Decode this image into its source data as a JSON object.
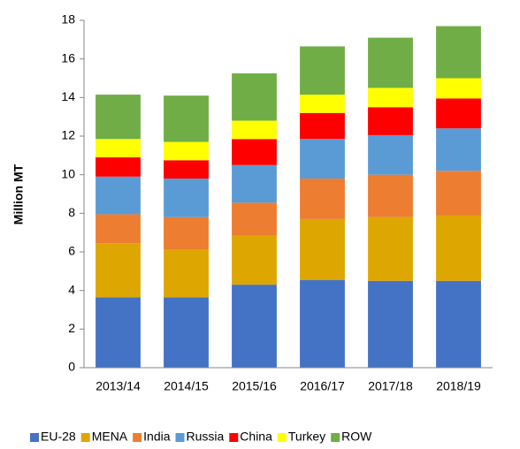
{
  "chart_data": {
    "type": "stacked_bar",
    "y_label": "Million MT",
    "categories": [
      "2013/14",
      "2014/15",
      "2015/16",
      "2016/17",
      "2017/18",
      "2018/19"
    ],
    "series": [
      {
        "name": "EU-28",
        "color": "#4472c4",
        "values": [
          3.65,
          3.65,
          4.3,
          4.55,
          4.5,
          4.5
        ]
      },
      {
        "name": "MENA",
        "color": "#dea600",
        "values": [
          2.8,
          2.45,
          2.55,
          3.15,
          3.3,
          3.4
        ]
      },
      {
        "name": "India",
        "color": "#ed7d31",
        "values": [
          1.5,
          1.7,
          1.7,
          2.1,
          2.2,
          2.3
        ]
      },
      {
        "name": "Russia",
        "color": "#5b9bd5",
        "values": [
          1.95,
          2.0,
          1.95,
          2.05,
          2.05,
          2.2
        ]
      },
      {
        "name": "China",
        "color": "#ff0000",
        "values": [
          1.0,
          0.95,
          1.35,
          1.35,
          1.45,
          1.55
        ]
      },
      {
        "name": "Turkey",
        "color": "#ffff00",
        "values": [
          0.95,
          0.95,
          0.95,
          0.95,
          1.0,
          1.05
        ]
      },
      {
        "name": "ROW",
        "color": "#70ad47",
        "values": [
          2.3,
          2.4,
          2.45,
          2.5,
          2.6,
          2.7
        ]
      }
    ],
    "ylim": [
      0,
      18
    ],
    "yticks": [
      0,
      2,
      4,
      6,
      8,
      10,
      12,
      14,
      16,
      18
    ],
    "grid": false,
    "legend": "bottom"
  }
}
